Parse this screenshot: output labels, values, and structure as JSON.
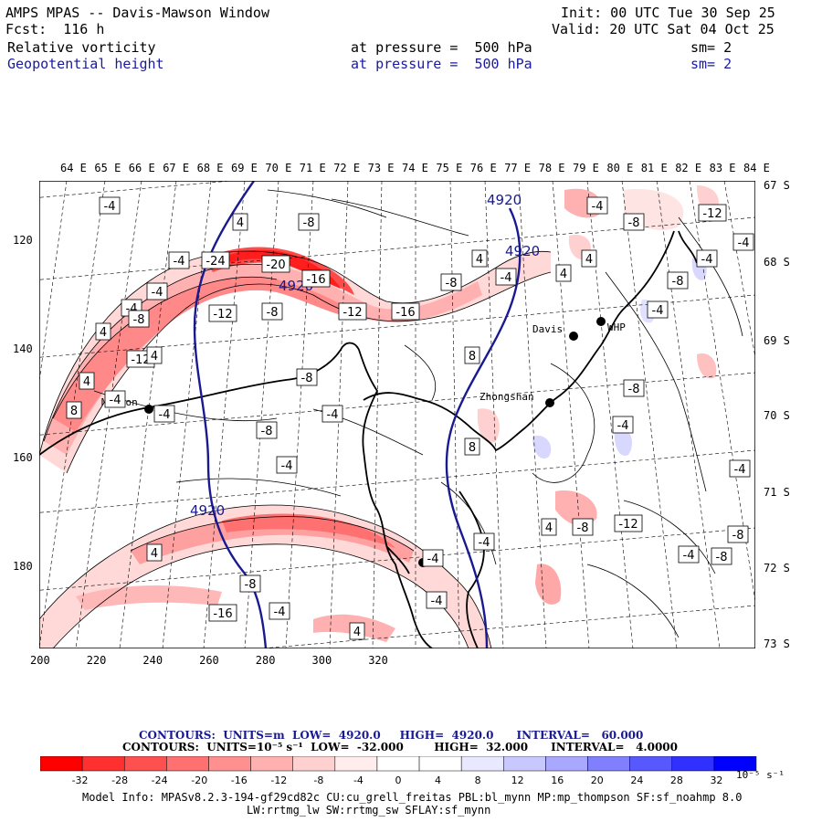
{
  "header": {
    "title": "AMPS MPAS -- Davis-Mawson Window",
    "fcst": "Fcst:  116 h",
    "init": "Init: 00 UTC Tue 30 Sep 25",
    "valid": "Valid: 20 UTC Sat 04 Oct 25",
    "field1": {
      "name": "Relative vorticity",
      "pressure": "at pressure =  500 hPa",
      "sm": "sm= 2"
    },
    "field2": {
      "name": "Geopotential height",
      "pressure": "at pressure =  500 hPa",
      "sm": "sm= 2"
    }
  },
  "axes": {
    "top_lon_labels": [
      "64 E",
      "65 E",
      "66 E",
      "67 E",
      "68 E",
      "69 E",
      "70 E",
      "71 E",
      "72 E",
      "73 E",
      "74 E",
      "75 E",
      "76 E",
      "77 E",
      "78 E",
      "79 E",
      "80 E",
      "81 E",
      "82 E",
      "83 E",
      "84 E"
    ],
    "right_lat_labels": [
      "67 S",
      "68 S",
      "69 S",
      "70 S",
      "71 S",
      "72 S",
      "73 S"
    ],
    "bottom_x_labels": [
      "200",
      "220",
      "240",
      "260",
      "280",
      "300",
      "320"
    ],
    "left_y_labels": [
      "120",
      "140",
      "160",
      "180"
    ]
  },
  "stations": [
    {
      "name": "Mawson"
    },
    {
      "name": "Davis"
    },
    {
      "name": "WHP"
    },
    {
      "name": "Zhongshan"
    },
    {
      "name": ""
    }
  ],
  "height_contour_labels": [
    "4920",
    "4920",
    "4920",
    "4920"
  ],
  "vorticity_labels": [
    "-4",
    "-8",
    "4",
    "-4",
    "-24",
    "-20",
    "-16",
    "-12",
    "-4",
    "-4",
    "-12",
    "-8",
    "4",
    "-8",
    "-16",
    "-8",
    "-12",
    "4",
    "4",
    "-4",
    "8",
    "-4",
    "-4",
    "-8",
    "-8",
    "-4",
    "8",
    "8",
    "4",
    "-4",
    "4",
    "4",
    "-4",
    "-8",
    "-12",
    "-4",
    "-4",
    "-8",
    "-4",
    "-8",
    "-4",
    "-4",
    "-8",
    "-8",
    "-4",
    "-12",
    "-8",
    "4",
    "-4",
    "-4",
    "4",
    "-8",
    "-4",
    "-16",
    "-4",
    "4"
  ],
  "legend": {
    "contours1": "CONTOURS:  UNITS=m  LOW=  4920.0     HIGH=  4920.0      INTERVAL=   60.000",
    "contours2": "CONTOURS:  UNITS=10⁻⁵ s⁻¹  LOW=  -32.000        HIGH=  32.000      INTERVAL=   4.0000",
    "colorbar_ticks": [
      "-32",
      "-28",
      "-24",
      "-20",
      "-16",
      "-12",
      "-8",
      "-4",
      "0",
      "4",
      "8",
      "12",
      "16",
      "20",
      "24",
      "28",
      "32"
    ],
    "colorbar_unit": "10⁻⁵ s⁻¹",
    "colors": [
      "#ff0000",
      "#ff3030",
      "#ff5050",
      "#ff7070",
      "#ff9090",
      "#ffb0b0",
      "#ffd0d0",
      "#ffecec",
      "#ffffff",
      "#ffffff",
      "#e8e8ff",
      "#c8c8ff",
      "#a8a8ff",
      "#8080ff",
      "#5858ff",
      "#3030ff",
      "#0000ff"
    ]
  },
  "footer": {
    "line1": "Model Info: MPASv8.2.3-194-gf29cd82c CU:cu_grell_freitas PBL:bl_mynn MP:mp_thompson SF:sf_noahmp 8.0",
    "line2": "LW:rrtmg_lw SW:rrtmg_sw SFLAY:sf_mynn"
  }
}
